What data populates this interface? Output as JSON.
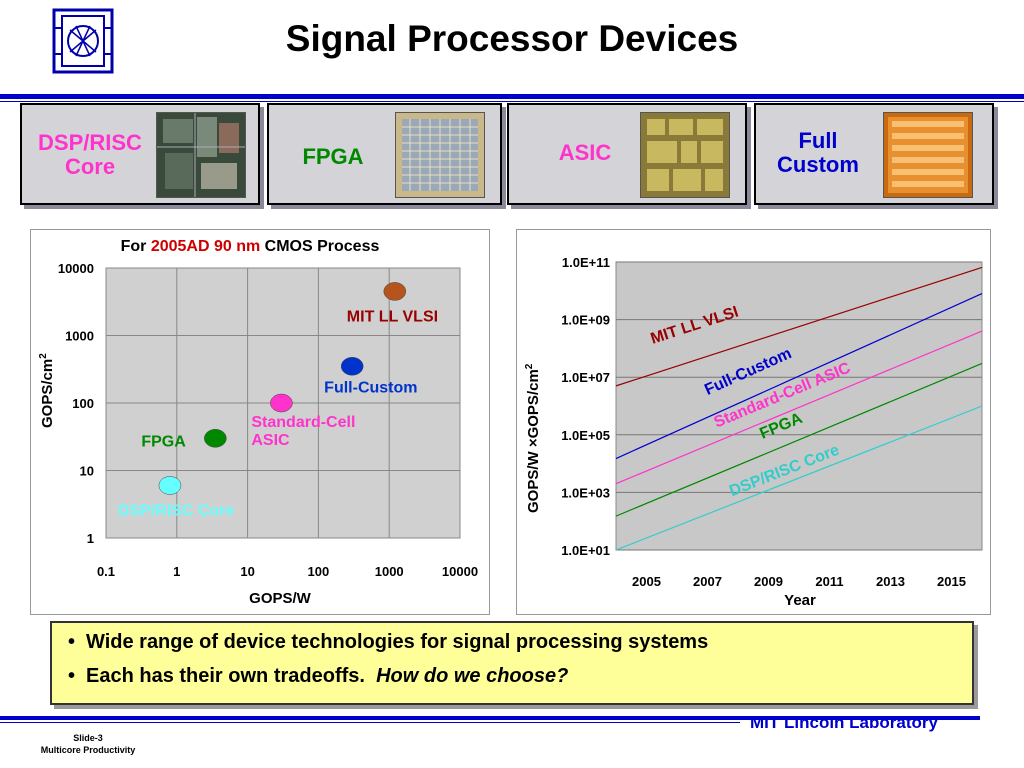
{
  "slide": {
    "title": "Signal Processor Devices",
    "footer": "MIT Lincoln Laboratory",
    "slide_number": "Slide-3",
    "deck_name": "Multicore Productivity"
  },
  "cards": [
    {
      "label_lines": [
        "DSP/RISC",
        "Core"
      ],
      "color": "#ff33cc"
    },
    {
      "label_lines": [
        "FPGA"
      ],
      "color": "#008800"
    },
    {
      "label_lines": [
        "ASIC"
      ],
      "color": "#ff33cc"
    },
    {
      "label_lines": [
        "Full",
        "Custom"
      ],
      "color": "#0000cc"
    }
  ],
  "bullets": [
    {
      "text": "Wide range of device technologies for signal processing systems",
      "emphasis": ""
    },
    {
      "text": "Each has their own tradeoffs.",
      "emphasis": "How do we choose?"
    }
  ],
  "chart_data": [
    {
      "type": "scatter",
      "title_parts": [
        {
          "text": "For ",
          "color": "#000000"
        },
        {
          "text": "2005AD 90 nm",
          "color": "#cc0000"
        },
        {
          "text": " CMOS Process",
          "color": "#000000"
        }
      ],
      "xlabel": "GOPS/W",
      "ylabel": "GOPS/cm",
      "ylabel_superscript": "2",
      "x_scale": "log",
      "y_scale": "log",
      "xlim": [
        0.1,
        10000
      ],
      "ylim": [
        1,
        10000
      ],
      "x_ticks": [
        "0.1",
        "1",
        "10",
        "100",
        "1000",
        "10000"
      ],
      "y_ticks": [
        "1",
        "10",
        "100",
        "1000",
        "10000"
      ],
      "grid": true,
      "points": [
        {
          "name": "DSP/RISC Core",
          "x": 0.8,
          "y": 6,
          "color": "#66ffff"
        },
        {
          "name": "FPGA",
          "x": 3.5,
          "y": 30,
          "color": "#008800"
        },
        {
          "name": "Standard-Cell ASIC",
          "x": 30,
          "y": 100,
          "color": "#ff33cc"
        },
        {
          "name": "Full-Custom",
          "x": 300,
          "y": 350,
          "color": "#0033cc"
        },
        {
          "name": "MIT LL VLSI",
          "x": 1200,
          "y": 4500,
          "color": "#b5541c"
        }
      ],
      "point_labels": [
        {
          "lines": [
            "DSP/RISC Core"
          ],
          "color": "#66ffff"
        },
        {
          "lines": [
            "FPGA"
          ],
          "color": "#008800"
        },
        {
          "lines": [
            "Standard-Cell",
            "ASIC"
          ],
          "color": "#ff33cc"
        },
        {
          "lines": [
            "Full-Custom"
          ],
          "color": "#0033cc"
        },
        {
          "lines": [
            "MIT LL VLSI"
          ],
          "color": "#990000"
        }
      ]
    },
    {
      "type": "line",
      "xlabel": "Year",
      "ylabel": "GOPS/W ×GOPS/cm",
      "ylabel_superscript": "2",
      "y_scale": "log",
      "xlim": [
        2004,
        2016
      ],
      "ylim": [
        10,
        100000000000
      ],
      "x_ticks": [
        "2005",
        "2007",
        "2009",
        "2011",
        "2013",
        "2015"
      ],
      "y_ticks": [
        "1.0E+01",
        "1.0E+03",
        "1.0E+05",
        "1.0E+07",
        "1.0E+09",
        "1.0E+11"
      ],
      "plot_background": "#c8c8c8",
      "grid": true,
      "series": [
        {
          "name": "MIT LL VLSI",
          "color": "#990000",
          "x": [
            2004,
            2016
          ],
          "y": [
            5000000,
            65000000000
          ]
        },
        {
          "name": "Full-Custom",
          "color": "#0000cc",
          "x": [
            2004,
            2016
          ],
          "y": [
            15000,
            8000000000
          ]
        },
        {
          "name": "Standard-Cell ASIC",
          "color": "#ff33cc",
          "x": [
            2004,
            2016
          ],
          "y": [
            2000,
            400000000
          ]
        },
        {
          "name": "FPGA",
          "color": "#008800",
          "x": [
            2004,
            2016
          ],
          "y": [
            150,
            30000000
          ]
        },
        {
          "name": "DSP/RISC Core",
          "color": "#33cccc",
          "x": [
            2004,
            2016
          ],
          "y": [
            10,
            1000000
          ]
        }
      ]
    }
  ]
}
